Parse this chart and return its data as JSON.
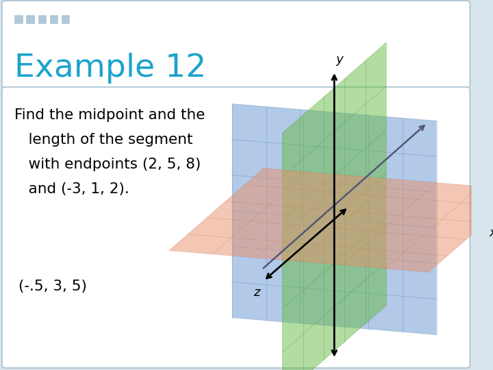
{
  "title": "Example 12",
  "title_color": "#1BA3CC",
  "outer_bg": "#D8E4EC",
  "box_bg": "#FFFFFF",
  "border_color": "#A8C0D0",
  "dots_color": "#B0C8D8",
  "main_text_lines": [
    "Find the midpoint and the",
    "   length of the segment",
    "   with endpoints (2, 5, 8)",
    "   and (-3, 1, 2)."
  ],
  "answer_text": "(-.5, 3, 5)",
  "text_color": "#000000",
  "plane_blue_face": "#5588CC",
  "plane_blue_alpha": 0.45,
  "plane_green_face": "#66BB44",
  "plane_green_alpha": 0.5,
  "plane_orange_face": "#E8906A",
  "plane_orange_alpha": 0.5,
  "grid_color_blue": "#4477AA",
  "grid_color_green": "#449922",
  "grid_color_orange": "#C07050",
  "axis_color": "#000000",
  "segment_color": "#555577"
}
